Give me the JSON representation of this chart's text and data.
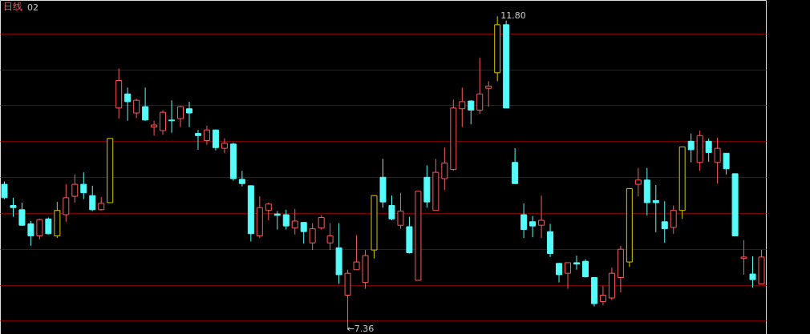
{
  "chart_data": {
    "type": "candlestick",
    "title": "日线",
    "subtitle": "02",
    "categories": [
      null,
      null,
      null,
      null,
      null,
      null,
      null,
      null,
      null,
      null,
      null,
      null,
      null,
      null,
      null,
      null,
      null,
      null,
      null,
      null,
      null,
      null,
      null,
      null,
      null,
      null,
      null,
      null,
      null,
      null,
      null,
      null,
      null,
      null,
      null,
      null,
      null,
      null,
      null,
      null,
      null,
      null,
      null,
      null,
      null,
      null,
      null,
      null,
      null,
      null,
      null,
      null,
      null,
      null,
      null,
      null,
      null,
      null,
      null,
      null,
      null,
      null,
      null,
      null,
      null,
      null,
      null,
      null,
      null,
      null,
      null,
      null,
      null,
      null,
      null,
      null,
      null,
      null,
      null,
      null,
      null,
      null,
      null,
      null,
      null,
      null,
      null
    ],
    "ohlc": [
      [
        9.42,
        9.46,
        9.21,
        9.23
      ],
      [
        9.12,
        9.23,
        8.96,
        9.09
      ],
      [
        9.06,
        9.16,
        8.83,
        8.84
      ],
      [
        8.86,
        8.9,
        8.55,
        8.69
      ],
      [
        8.69,
        8.93,
        8.64,
        8.92
      ],
      [
        8.93,
        8.95,
        8.71,
        8.72
      ],
      [
        8.69,
        9.17,
        8.66,
        9.05
      ],
      [
        8.99,
        9.42,
        8.89,
        9.23
      ],
      [
        9.25,
        9.56,
        9.16,
        9.42
      ],
      [
        9.42,
        9.59,
        9.21,
        9.3
      ],
      [
        9.26,
        9.4,
        9.04,
        9.06
      ],
      [
        9.06,
        9.24,
        9.05,
        9.15
      ],
      [
        9.16,
        10.07,
        9.16,
        10.07
      ],
      [
        10.5,
        11.06,
        10.35,
        10.89
      ],
      [
        10.7,
        10.79,
        10.32,
        10.59
      ],
      [
        10.43,
        10.63,
        10.36,
        10.61
      ],
      [
        10.52,
        10.79,
        10.32,
        10.33
      ],
      [
        10.23,
        10.32,
        10.11,
        10.26
      ],
      [
        10.18,
        10.47,
        10.12,
        10.44
      ],
      [
        10.33,
        10.61,
        10.15,
        10.32
      ],
      [
        10.35,
        10.53,
        10.23,
        10.52
      ],
      [
        10.49,
        10.59,
        10.23,
        10.43
      ],
      [
        10.14,
        10.19,
        9.91,
        10.11
      ],
      [
        10.04,
        10.25,
        9.98,
        10.19
      ],
      [
        10.19,
        10.19,
        9.9,
        9.94
      ],
      [
        9.93,
        10.07,
        9.86,
        10.0
      ],
      [
        9.99,
        10.01,
        9.47,
        9.5
      ],
      [
        9.49,
        9.61,
        9.39,
        9.43
      ],
      [
        9.4,
        9.4,
        8.61,
        8.72
      ],
      [
        8.69,
        9.25,
        8.66,
        9.09
      ],
      [
        9.05,
        9.16,
        8.91,
        9.14
      ],
      [
        9.0,
        9.04,
        8.78,
        8.98
      ],
      [
        8.99,
        9.06,
        8.78,
        8.83
      ],
      [
        8.8,
        9.07,
        8.71,
        8.9
      ],
      [
        8.88,
        8.88,
        8.58,
        8.75
      ],
      [
        8.59,
        8.87,
        8.49,
        8.79
      ],
      [
        8.8,
        8.98,
        8.78,
        8.95
      ],
      [
        8.59,
        8.87,
        8.49,
        8.69
      ],
      [
        8.52,
        8.87,
        8.01,
        8.14
      ],
      [
        7.85,
        8.21,
        7.36,
        8.16
      ],
      [
        8.21,
        8.7,
        8.21,
        8.32
      ],
      [
        8.03,
        8.49,
        7.94,
        8.41
      ],
      [
        8.49,
        9.26,
        8.37,
        9.26
      ],
      [
        9.52,
        9.78,
        9.09,
        9.17
      ],
      [
        9.12,
        9.26,
        8.91,
        8.93
      ],
      [
        8.84,
        9.3,
        8.79,
        9.04
      ],
      [
        8.82,
        8.96,
        8.44,
        8.45
      ],
      [
        8.06,
        9.32,
        8.06,
        9.32
      ],
      [
        9.52,
        9.69,
        9.09,
        9.17
      ],
      [
        9.05,
        9.78,
        9.05,
        9.59
      ],
      [
        9.5,
        9.94,
        9.34,
        9.72
      ],
      [
        9.63,
        10.62,
        9.61,
        10.5
      ],
      [
        10.49,
        10.79,
        10.23,
        10.59
      ],
      [
        10.6,
        10.61,
        10.27,
        10.47
      ],
      [
        10.47,
        11.21,
        10.42,
        10.7
      ],
      [
        10.78,
        10.88,
        10.52,
        10.81
      ],
      [
        11.0,
        11.8,
        10.88,
        11.68
      ],
      [
        11.68,
        11.74,
        10.5,
        10.5
      ],
      [
        9.73,
        9.93,
        9.43,
        9.43
      ],
      [
        8.99,
        9.15,
        8.66,
        8.78
      ],
      [
        8.89,
        8.97,
        8.67,
        8.83
      ],
      [
        8.84,
        9.26,
        8.66,
        8.91
      ],
      [
        8.75,
        8.86,
        8.39,
        8.44
      ],
      [
        8.3,
        8.3,
        8.03,
        8.14
      ],
      [
        8.16,
        8.31,
        7.94,
        8.31
      ],
      [
        8.31,
        8.41,
        8.21,
        8.29
      ],
      [
        8.33,
        8.36,
        8.1,
        8.11
      ],
      [
        8.1,
        8.1,
        7.69,
        7.73
      ],
      [
        7.76,
        7.98,
        7.71,
        7.85
      ],
      [
        7.81,
        8.24,
        7.78,
        8.16
      ],
      [
        8.1,
        8.55,
        7.89,
        8.5
      ],
      [
        8.32,
        9.36,
        8.25,
        9.36
      ],
      [
        9.42,
        9.65,
        9.25,
        9.48
      ],
      [
        9.48,
        9.65,
        8.98,
        9.16
      ],
      [
        9.19,
        9.41,
        8.74,
        9.16
      ],
      [
        8.89,
        9.18,
        8.59,
        8.79
      ],
      [
        8.81,
        9.12,
        8.72,
        9.05
      ],
      [
        9.05,
        9.95,
        8.93,
        9.95
      ],
      [
        10.03,
        10.14,
        9.73,
        9.91
      ],
      [
        9.73,
        10.18,
        9.61,
        10.11
      ],
      [
        10.03,
        10.07,
        9.74,
        9.87
      ],
      [
        9.73,
        10.08,
        9.43,
        9.93
      ],
      [
        9.86,
        9.86,
        9.56,
        9.64
      ],
      [
        9.57,
        9.57,
        8.69,
        8.69
      ],
      [
        8.37,
        8.63,
        8.14,
        8.39
      ],
      [
        8.15,
        8.4,
        7.96,
        8.07
      ],
      [
        8.01,
        8.49,
        8.01,
        8.39
      ]
    ],
    "colors": [
      "#54fcfc",
      "#54fcfc",
      "#54fcfc",
      "#54fcfc",
      "#ff5a5a",
      "#54fcfc",
      "#d8c800",
      "#ff5a5a",
      "#ff5a5a",
      "#54fcfc",
      "#54fcfc",
      "#ff5a5a",
      "#d8c800",
      "#ff5a5a",
      "#54fcfc",
      "#ff5a5a",
      "#54fcfc",
      "#ff5a5a",
      "#ff5a5a",
      "#54fcfc",
      "#ff5a5a",
      "#54fcfc",
      "#54fcfc",
      "#ff5a5a",
      "#54fcfc",
      "#ff5a5a",
      "#54fcfc",
      "#54fcfc",
      "#54fcfc",
      "#ff5a5a",
      "#ff5a5a",
      "#54fcfc",
      "#54fcfc",
      "#ff5a5a",
      "#54fcfc",
      "#ff5a5a",
      "#ff5a5a",
      "#ff5a5a",
      "#54fcfc",
      "#ff5a5a",
      "#ff5a5a",
      "#ff5a5a",
      "#d8c800",
      "#54fcfc",
      "#54fcfc",
      "#ff5a5a",
      "#54fcfc",
      "#ff5a5a",
      "#54fcfc",
      "#ff5a5a",
      "#ff5a5a",
      "#ff5a5a",
      "#ff5a5a",
      "#54fcfc",
      "#ff5a5a",
      "#ff5a5a",
      "#d8c800",
      "#54fcfc",
      "#54fcfc",
      "#54fcfc",
      "#54fcfc",
      "#ff5a5a",
      "#54fcfc",
      "#54fcfc",
      "#ff5a5a",
      "#54fcfc",
      "#54fcfc",
      "#54fcfc",
      "#ff5a5a",
      "#ff5a5a",
      "#ff5a5a",
      "#d8c800",
      "#ff5a5a",
      "#54fcfc",
      "#54fcfc",
      "#54fcfc",
      "#ff5a5a",
      "#d8c800",
      "#54fcfc",
      "#ff5a5a",
      "#54fcfc",
      "#ff5a5a",
      "#54fcfc",
      "#54fcfc",
      "#ff5a5a",
      "#54fcfc",
      "#ff5a5a"
    ],
    "ylim": [
      7.3,
      12.03
    ],
    "yticks": [
      {
        "value": 7.49,
        "label": null
      },
      {
        "value": 7.99,
        "label": null
      },
      {
        "value": 8.5,
        "label": null
      },
      {
        "value": 9.01,
        "label": null
      },
      {
        "value": 9.52,
        "label": null
      },
      {
        "value": 10.03,
        "label": null
      },
      {
        "value": 10.54,
        "label": null
      },
      {
        "value": 11.04,
        "label": null
      },
      {
        "value": 11.55,
        "label": null
      }
    ],
    "grid": "y",
    "annotations": [
      "←7.36",
      "11.80"
    ]
  }
}
